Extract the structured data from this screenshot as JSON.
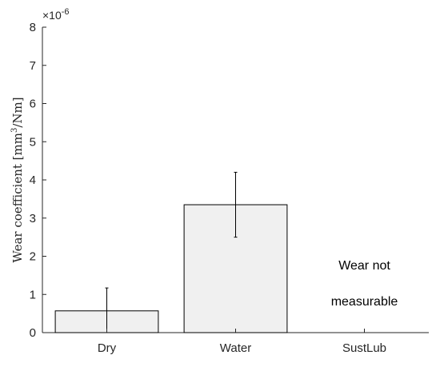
{
  "chart_data": {
    "type": "bar",
    "title": "",
    "xlabel": "",
    "ylabel": "Wear coefficient [mm³/Nm]",
    "ylabel_parts": {
      "main": "Wear coefficient ",
      "open": "[mm",
      "sup": "3",
      "close": "/Nm]"
    },
    "y_scale_exponent_base": "×10",
    "y_scale_exponent_power": "-6",
    "ylim": [
      0,
      8
    ],
    "yticks": [
      0,
      1,
      2,
      3,
      4,
      5,
      6,
      7,
      8
    ],
    "categories": [
      "Dry",
      "Water",
      "SustLub"
    ],
    "values": [
      0.57,
      3.35,
      null
    ],
    "error_low": [
      0.0,
      2.5,
      null
    ],
    "error_high": [
      1.17,
      4.2,
      null
    ],
    "annotations": [
      {
        "category": "SustLub",
        "lines": [
          "Wear not",
          "measurable"
        ]
      }
    ],
    "grid": false,
    "bar_fill": "#f0f0f0",
    "bar_edge": "#000000",
    "axis_color": "#262626"
  }
}
